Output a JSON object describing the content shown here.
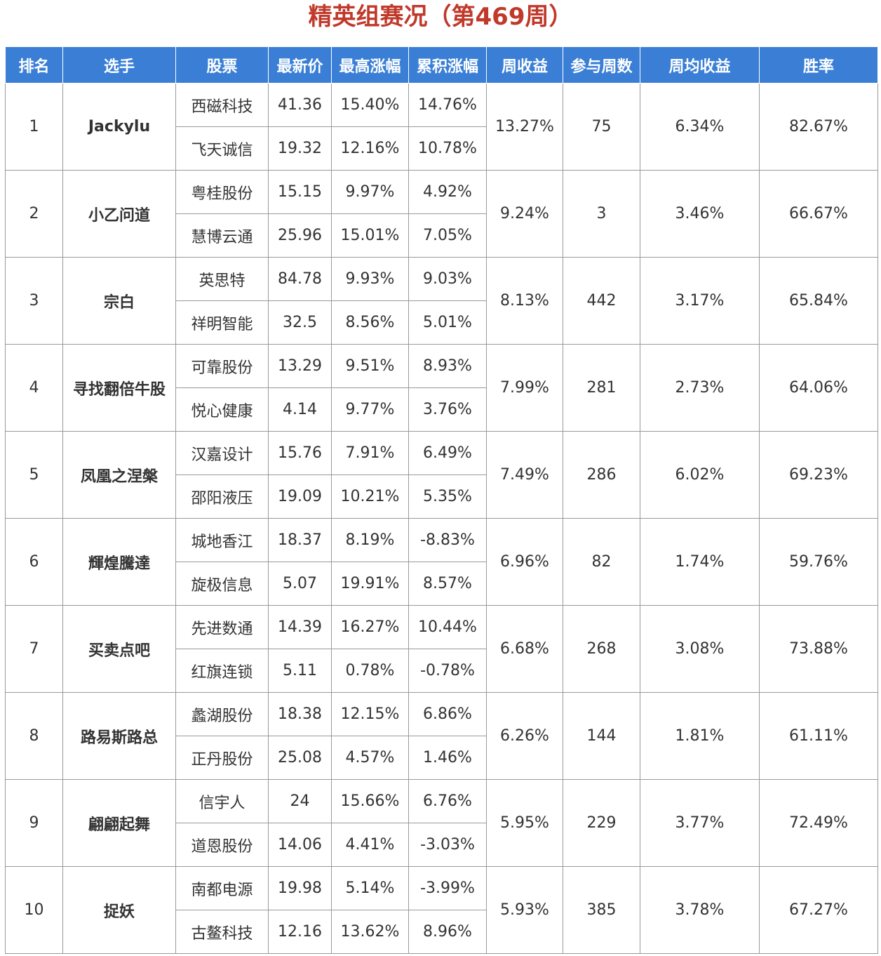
{
  "title": "精英组赛况（第469周）",
  "headers": [
    "排名",
    "选手",
    "股票",
    "最新价",
    "最高涨幅",
    "累积涨幅",
    "周收益",
    "参与周数",
    "周均收益",
    "胜率"
  ],
  "rows": [
    {
      "rank": "1",
      "player": "Jackylu",
      "stocks": [
        {
          "name": "西磁科技",
          "price": "41.36",
          "max_gain": "15.40%",
          "cum_gain": "14.76%"
        },
        {
          "name": "飞天诚信",
          "price": "19.32",
          "max_gain": "12.16%",
          "cum_gain": "10.78%"
        }
      ],
      "week_return": "13.27%",
      "weeks": "75",
      "avg_return": "6.34%",
      "win_rate": "82.67%"
    },
    {
      "rank": "2",
      "player": "小乙问道",
      "stocks": [
        {
          "name": "粤桂股份",
          "price": "15.15",
          "max_gain": "9.97%",
          "cum_gain": "4.92%"
        },
        {
          "name": "慧博云通",
          "price": "25.96",
          "max_gain": "15.01%",
          "cum_gain": "7.05%"
        }
      ],
      "week_return": "9.24%",
      "weeks": "3",
      "avg_return": "3.46%",
      "win_rate": "66.67%"
    },
    {
      "rank": "3",
      "player": "宗白",
      "stocks": [
        {
          "name": "英思特",
          "price": "84.78",
          "max_gain": "9.93%",
          "cum_gain": "9.03%"
        },
        {
          "name": "祥明智能",
          "price": "32.5",
          "max_gain": "8.56%",
          "cum_gain": "5.01%"
        }
      ],
      "week_return": "8.13%",
      "weeks": "442",
      "avg_return": "3.17%",
      "win_rate": "65.84%"
    },
    {
      "rank": "4",
      "player": "寻找翻倍牛股",
      "stocks": [
        {
          "name": "可靠股份",
          "price": "13.29",
          "max_gain": "9.51%",
          "cum_gain": "8.93%"
        },
        {
          "name": "悦心健康",
          "price": "4.14",
          "max_gain": "9.77%",
          "cum_gain": "3.76%"
        }
      ],
      "week_return": "7.99%",
      "weeks": "281",
      "avg_return": "2.73%",
      "win_rate": "64.06%"
    },
    {
      "rank": "5",
      "player": "凤凰之涅槃",
      "stocks": [
        {
          "name": "汉嘉设计",
          "price": "15.76",
          "max_gain": "7.91%",
          "cum_gain": "6.49%"
        },
        {
          "name": "邵阳液压",
          "price": "19.09",
          "max_gain": "10.21%",
          "cum_gain": "5.35%"
        }
      ],
      "week_return": "7.49%",
      "weeks": "286",
      "avg_return": "6.02%",
      "win_rate": "69.23%"
    },
    {
      "rank": "6",
      "player": "輝煌騰達",
      "stocks": [
        {
          "name": "城地香江",
          "price": "18.37",
          "max_gain": "8.19%",
          "cum_gain": "-8.83%"
        },
        {
          "name": "旋极信息",
          "price": "5.07",
          "max_gain": "19.91%",
          "cum_gain": "8.57%"
        }
      ],
      "week_return": "6.96%",
      "weeks": "82",
      "avg_return": "1.74%",
      "win_rate": "59.76%"
    },
    {
      "rank": "7",
      "player": "买卖点吧",
      "stocks": [
        {
          "name": "先进数通",
          "price": "14.39",
          "max_gain": "16.27%",
          "cum_gain": "10.44%"
        },
        {
          "name": "红旗连锁",
          "price": "5.11",
          "max_gain": "0.78%",
          "cum_gain": "-0.78%"
        }
      ],
      "week_return": "6.68%",
      "weeks": "268",
      "avg_return": "3.08%",
      "win_rate": "73.88%"
    },
    {
      "rank": "8",
      "player": "路易斯路总",
      "stocks": [
        {
          "name": "蠡湖股份",
          "price": "18.38",
          "max_gain": "12.15%",
          "cum_gain": "6.86%"
        },
        {
          "name": "正丹股份",
          "price": "25.08",
          "max_gain": "4.57%",
          "cum_gain": "1.46%"
        }
      ],
      "week_return": "6.26%",
      "weeks": "144",
      "avg_return": "1.81%",
      "win_rate": "61.11%"
    },
    {
      "rank": "9",
      "player": "翩翩起舞",
      "stocks": [
        {
          "name": "信宇人",
          "price": "24",
          "max_gain": "15.66%",
          "cum_gain": "6.76%"
        },
        {
          "name": "道恩股份",
          "price": "14.06",
          "max_gain": "4.41%",
          "cum_gain": "-3.03%"
        }
      ],
      "week_return": "5.95%",
      "weeks": "229",
      "avg_return": "3.77%",
      "win_rate": "72.49%"
    },
    {
      "rank": "10",
      "player": "捉妖",
      "stocks": [
        {
          "name": "南都电源",
          "price": "19.98",
          "max_gain": "5.14%",
          "cum_gain": "-3.99%"
        },
        {
          "name": "古鳌科技",
          "price": "12.16",
          "max_gain": "13.62%",
          "cum_gain": "8.96%"
        }
      ],
      "week_return": "5.93%",
      "weeks": "385",
      "avg_return": "3.78%",
      "win_rate": "67.27%"
    }
  ],
  "colors": {
    "header_bg": "#3a7fd5",
    "title": "#c0392b",
    "positive": "#d0312d",
    "negative": "#2e7d32",
    "link": "#2b62b5"
  }
}
